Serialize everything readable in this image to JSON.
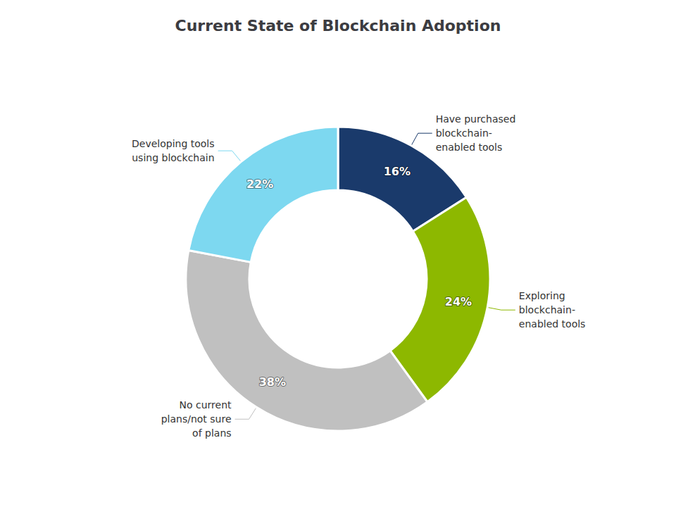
{
  "chart_data": {
    "type": "donut",
    "title": "Current State of Blockchain Adoption",
    "categories": [
      "Have purchased\nblockchain-\nenabled tools",
      "Exploring\nblockchain-\nenabled tools",
      "No current\nplans/not sure\nof plans",
      "Developing tools\nusing blockchain"
    ],
    "values": [
      16,
      24,
      38,
      22
    ],
    "value_labels": [
      "16%",
      "24%",
      "38%",
      "22%"
    ],
    "colors": [
      "#1a3a6b",
      "#8db800",
      "#c0c0c0",
      "#7dd8f0"
    ],
    "data_labels": true,
    "legend": false
  }
}
